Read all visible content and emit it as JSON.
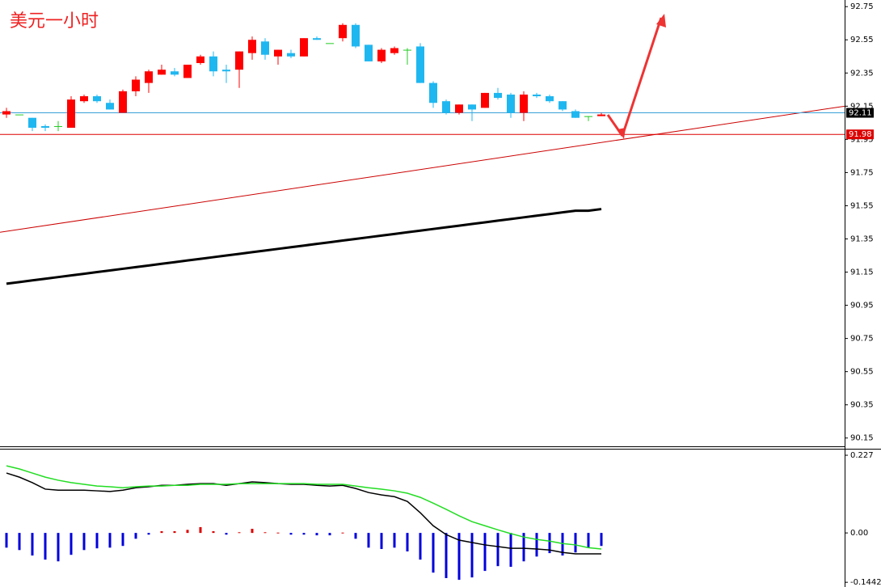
{
  "chart_data": [
    {
      "type": "candlestick",
      "title": "美元一小时",
      "title_color": "#ee2222",
      "up_color": "#ff0000",
      "down_color": "#1fb7f0",
      "doji_color": "#22cc22",
      "open": [
        92.1,
        92.1,
        92.08,
        92.03,
        92.03,
        92.02,
        92.18,
        92.21,
        92.17,
        92.11,
        92.24,
        92.29,
        92.34,
        92.36,
        92.32,
        92.41,
        92.45,
        92.37,
        92.37,
        92.47,
        92.54,
        92.45,
        92.47,
        92.45,
        92.56,
        92.53,
        92.56,
        92.64,
        92.52,
        92.42,
        92.47,
        92.49,
        92.51,
        92.29,
        92.18,
        92.11,
        92.16,
        92.14,
        92.23,
        92.22,
        92.11,
        92.22,
        92.21,
        92.18,
        92.12,
        92.09,
        92.09
      ],
      "high": [
        92.14,
        92.1,
        92.08,
        92.04,
        92.06,
        92.21,
        92.22,
        92.22,
        92.19,
        92.25,
        92.33,
        92.37,
        92.4,
        92.38,
        92.4,
        92.46,
        92.48,
        92.4,
        92.48,
        92.57,
        92.56,
        92.49,
        92.49,
        92.56,
        92.57,
        92.53,
        92.65,
        92.65,
        92.52,
        92.5,
        92.51,
        92.5,
        92.53,
        92.3,
        92.19,
        92.16,
        92.16,
        92.23,
        92.26,
        92.23,
        92.24,
        92.23,
        92.22,
        92.18,
        92.13,
        92.09,
        92.11
      ],
      "low": [
        92.08,
        92.1,
        92.0,
        92.0,
        92.0,
        92.02,
        92.17,
        92.17,
        92.13,
        92.11,
        92.21,
        92.23,
        92.34,
        92.33,
        92.32,
        92.4,
        92.33,
        92.29,
        92.26,
        92.43,
        92.43,
        92.4,
        92.44,
        92.45,
        92.55,
        92.53,
        92.54,
        92.5,
        92.42,
        92.41,
        92.46,
        92.4,
        92.29,
        92.14,
        92.1,
        92.1,
        92.06,
        92.14,
        92.19,
        92.08,
        92.06,
        92.2,
        92.17,
        92.12,
        92.08,
        92.06,
        92.09
      ],
      "close": [
        92.12,
        92.1,
        92.02,
        92.02,
        92.03,
        92.19,
        92.21,
        92.18,
        92.13,
        92.24,
        92.31,
        92.36,
        92.37,
        92.34,
        92.4,
        92.45,
        92.36,
        92.36,
        92.48,
        92.55,
        92.46,
        92.49,
        92.45,
        92.56,
        92.55,
        92.53,
        92.64,
        92.51,
        92.42,
        92.49,
        92.5,
        92.49,
        92.29,
        92.17,
        92.11,
        92.16,
        92.13,
        92.23,
        92.2,
        92.11,
        92.22,
        92.21,
        92.18,
        92.13,
        92.08,
        92.09,
        92.1
      ],
      "series": [
        {
          "color": "#000000",
          "values": [
            91.08,
            91.09,
            91.1,
            91.11,
            91.12,
            91.13,
            91.14,
            91.15,
            91.16,
            91.17,
            91.18,
            91.19,
            91.2,
            91.21,
            91.22,
            91.23,
            91.24,
            91.25,
            91.26,
            91.27,
            91.28,
            91.29,
            91.3,
            91.31,
            91.32,
            91.33,
            91.34,
            91.35,
            91.36,
            91.37,
            91.38,
            91.39,
            91.4,
            91.41,
            91.42,
            91.43,
            91.44,
            91.45,
            91.46,
            91.47,
            91.48,
            91.49,
            91.5,
            91.51,
            91.52,
            91.52,
            91.53
          ]
        }
      ],
      "trendline": {
        "color": "#cc0000",
        "values": [
          91.39,
          92.15
        ]
      },
      "price_lines": [
        {
          "value": 92.11,
          "color": "#3aa0d8",
          "label_bg": "#000000"
        },
        {
          "value": 91.98,
          "color": "#dd0000",
          "label_bg": "#dd0000"
        }
      ],
      "ylim": [
        90.1,
        92.79
      ],
      "yticks": [
        92.75,
        92.55,
        92.35,
        92.15,
        91.95,
        91.75,
        91.55,
        91.35,
        91.15,
        90.95,
        90.75,
        90.55,
        90.35,
        90.15
      ]
    },
    {
      "type": "macd",
      "pos_color": "#dd0000",
      "neg_color": "#0000dd",
      "values": [
        -0.043,
        -0.05,
        -0.066,
        -0.078,
        -0.083,
        -0.064,
        -0.05,
        -0.045,
        -0.043,
        -0.038,
        -0.017,
        -0.005,
        0.005,
        0.005,
        0.009,
        0.017,
        0.005,
        -0.005,
        0.002,
        0.012,
        0.002,
        0.001,
        -0.005,
        -0.005,
        -0.007,
        -0.007,
        0.001,
        -0.017,
        -0.043,
        -0.047,
        -0.043,
        -0.054,
        -0.078,
        -0.116,
        -0.132,
        -0.137,
        -0.13,
        -0.111,
        -0.097,
        -0.099,
        -0.083,
        -0.069,
        -0.059,
        -0.066,
        -0.057,
        -0.043,
        -0.038
      ],
      "series": [
        {
          "color": "#000000",
          "values": [
            0.175,
            0.163,
            0.147,
            0.128,
            0.125,
            0.125,
            0.125,
            0.123,
            0.121,
            0.125,
            0.132,
            0.135,
            0.139,
            0.139,
            0.142,
            0.144,
            0.144,
            0.139,
            0.144,
            0.149,
            0.147,
            0.144,
            0.142,
            0.142,
            0.139,
            0.137,
            0.139,
            0.13,
            0.118,
            0.111,
            0.106,
            0.092,
            0.059,
            0.021,
            -0.005,
            -0.021,
            -0.028,
            -0.035,
            -0.04,
            -0.045,
            -0.045,
            -0.047,
            -0.05,
            -0.057,
            -0.061,
            -0.061,
            -0.061
          ]
        },
        {
          "color": "#22dd22",
          "values": [
            0.196,
            0.187,
            0.175,
            0.163,
            0.154,
            0.147,
            0.142,
            0.137,
            0.135,
            0.132,
            0.135,
            0.137,
            0.137,
            0.139,
            0.139,
            0.142,
            0.142,
            0.142,
            0.144,
            0.144,
            0.144,
            0.144,
            0.144,
            0.144,
            0.142,
            0.142,
            0.142,
            0.137,
            0.132,
            0.128,
            0.123,
            0.116,
            0.104,
            0.087,
            0.069,
            0.05,
            0.033,
            0.021,
            0.009,
            -0.002,
            -0.012,
            -0.019,
            -0.024,
            -0.031,
            -0.035,
            -0.043,
            -0.047
          ]
        }
      ],
      "ylim": [
        -0.158,
        0.246
      ],
      "yticks": [
        0.227,
        {
          "value": 0,
          "label": "0.00"
        },
        -0.1442
      ]
    }
  ]
}
